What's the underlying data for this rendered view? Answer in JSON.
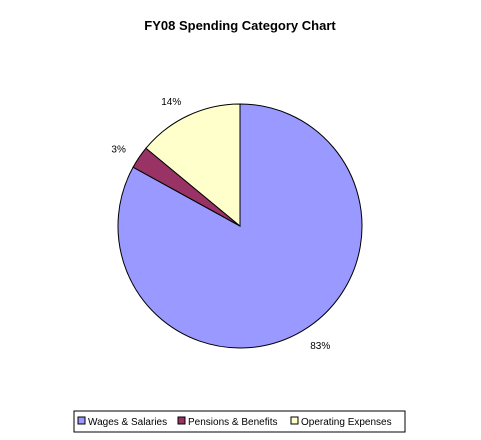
{
  "chart_data": {
    "type": "pie",
    "title": "FY08 Spending Category Chart",
    "labels": [
      "Wages & Salaries",
      "Pensions & Benefits",
      "Operating Expenses"
    ],
    "values": [
      83,
      3,
      14
    ],
    "value_labels": [
      "83%",
      "3%",
      "14%"
    ],
    "colors": [
      "#9999ff",
      "#993366",
      "#ffffcc"
    ],
    "start_angle_deg": 0,
    "direction": "clockwise",
    "legend_position": "bottom"
  }
}
